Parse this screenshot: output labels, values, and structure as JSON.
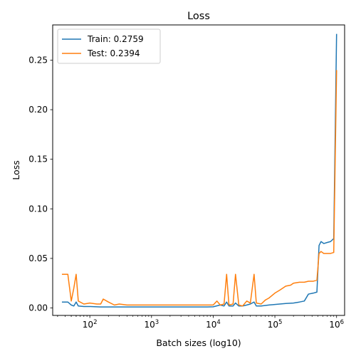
{
  "chart_data": {
    "type": "line",
    "title": "Loss",
    "xlabel": "Batch sizes (log10)",
    "ylabel": "Loss",
    "xscale": "log",
    "xlim": [
      25,
      1350000
    ],
    "ylim": [
      -0.0075,
      0.2855
    ],
    "xticks": [
      {
        "value": 100,
        "base": "10",
        "exp": "2"
      },
      {
        "value": 1000,
        "base": "10",
        "exp": "3"
      },
      {
        "value": 10000,
        "base": "10",
        "exp": "4"
      },
      {
        "value": 100000,
        "base": "10",
        "exp": "5"
      },
      {
        "value": 1000000,
        "base": "10",
        "exp": "6"
      }
    ],
    "yticks": [
      "0.00",
      "0.05",
      "0.10",
      "0.15",
      "0.20",
      "0.25"
    ],
    "grid": false,
    "legend_position": "top-left",
    "series": [
      {
        "name": "Train: 0.2759",
        "color": "#1f77b4",
        "points": [
          [
            36,
            0.006
          ],
          [
            44,
            0.006
          ],
          [
            50,
            0.003
          ],
          [
            55,
            0.002
          ],
          [
            60,
            0.006
          ],
          [
            65,
            0.002
          ],
          [
            80,
            0.0015
          ],
          [
            100,
            0.0015
          ],
          [
            150,
            0.001
          ],
          [
            200,
            0.001
          ],
          [
            300,
            0.001
          ],
          [
            500,
            0.001
          ],
          [
            1000,
            0.001
          ],
          [
            2000,
            0.001
          ],
          [
            3000,
            0.001
          ],
          [
            5000,
            0.001
          ],
          [
            8000,
            0.001
          ],
          [
            10000,
            0.0012
          ],
          [
            13000,
            0.003
          ],
          [
            15000,
            0.002
          ],
          [
            16500,
            0.006
          ],
          [
            18000,
            0.002
          ],
          [
            21000,
            0.002
          ],
          [
            23000,
            0.005
          ],
          [
            26000,
            0.002
          ],
          [
            30000,
            0.002
          ],
          [
            35000,
            0.003
          ],
          [
            40000,
            0.004
          ],
          [
            46000,
            0.006
          ],
          [
            50000,
            0.002
          ],
          [
            60000,
            0.002
          ],
          [
            80000,
            0.003
          ],
          [
            100000,
            0.0035
          ],
          [
            150000,
            0.0045
          ],
          [
            200000,
            0.005
          ],
          [
            250000,
            0.006
          ],
          [
            300000,
            0.007
          ],
          [
            350000,
            0.014
          ],
          [
            420000,
            0.015
          ],
          [
            480000,
            0.016
          ],
          [
            520000,
            0.063
          ],
          [
            560000,
            0.067
          ],
          [
            620000,
            0.065
          ],
          [
            700000,
            0.066
          ],
          [
            800000,
            0.067
          ],
          [
            900000,
            0.07
          ],
          [
            1000000,
            0.2759
          ]
        ]
      },
      {
        "name": "Test: 0.2394",
        "color": "#ff7f0e",
        "points": [
          [
            36,
            0.034
          ],
          [
            44,
            0.034
          ],
          [
            50,
            0.007
          ],
          [
            55,
            0.02
          ],
          [
            60,
            0.034
          ],
          [
            65,
            0.007
          ],
          [
            80,
            0.004
          ],
          [
            100,
            0.005
          ],
          [
            130,
            0.004
          ],
          [
            150,
            0.004
          ],
          [
            165,
            0.009
          ],
          [
            200,
            0.006
          ],
          [
            250,
            0.003
          ],
          [
            300,
            0.004
          ],
          [
            400,
            0.003
          ],
          [
            500,
            0.003
          ],
          [
            700,
            0.003
          ],
          [
            1000,
            0.003
          ],
          [
            1300,
            0.003
          ],
          [
            2000,
            0.003
          ],
          [
            3000,
            0.003
          ],
          [
            5000,
            0.003
          ],
          [
            8000,
            0.003
          ],
          [
            10000,
            0.003
          ],
          [
            11500,
            0.007
          ],
          [
            13000,
            0.003
          ],
          [
            15000,
            0.004
          ],
          [
            16500,
            0.034
          ],
          [
            18000,
            0.003
          ],
          [
            21000,
            0.004
          ],
          [
            23000,
            0.034
          ],
          [
            26000,
            0.003
          ],
          [
            30000,
            0.002
          ],
          [
            35000,
            0.007
          ],
          [
            40000,
            0.005
          ],
          [
            46000,
            0.034
          ],
          [
            50000,
            0.005
          ],
          [
            60000,
            0.004
          ],
          [
            70000,
            0.008
          ],
          [
            80000,
            0.01
          ],
          [
            100000,
            0.015
          ],
          [
            120000,
            0.018
          ],
          [
            150000,
            0.022
          ],
          [
            180000,
            0.023
          ],
          [
            200000,
            0.025
          ],
          [
            250000,
            0.026
          ],
          [
            300000,
            0.026
          ],
          [
            350000,
            0.027
          ],
          [
            420000,
            0.027
          ],
          [
            480000,
            0.028
          ],
          [
            520000,
            0.055
          ],
          [
            560000,
            0.057
          ],
          [
            620000,
            0.055
          ],
          [
            700000,
            0.055
          ],
          [
            800000,
            0.055
          ],
          [
            900000,
            0.056
          ],
          [
            1000000,
            0.2394
          ]
        ]
      }
    ]
  }
}
